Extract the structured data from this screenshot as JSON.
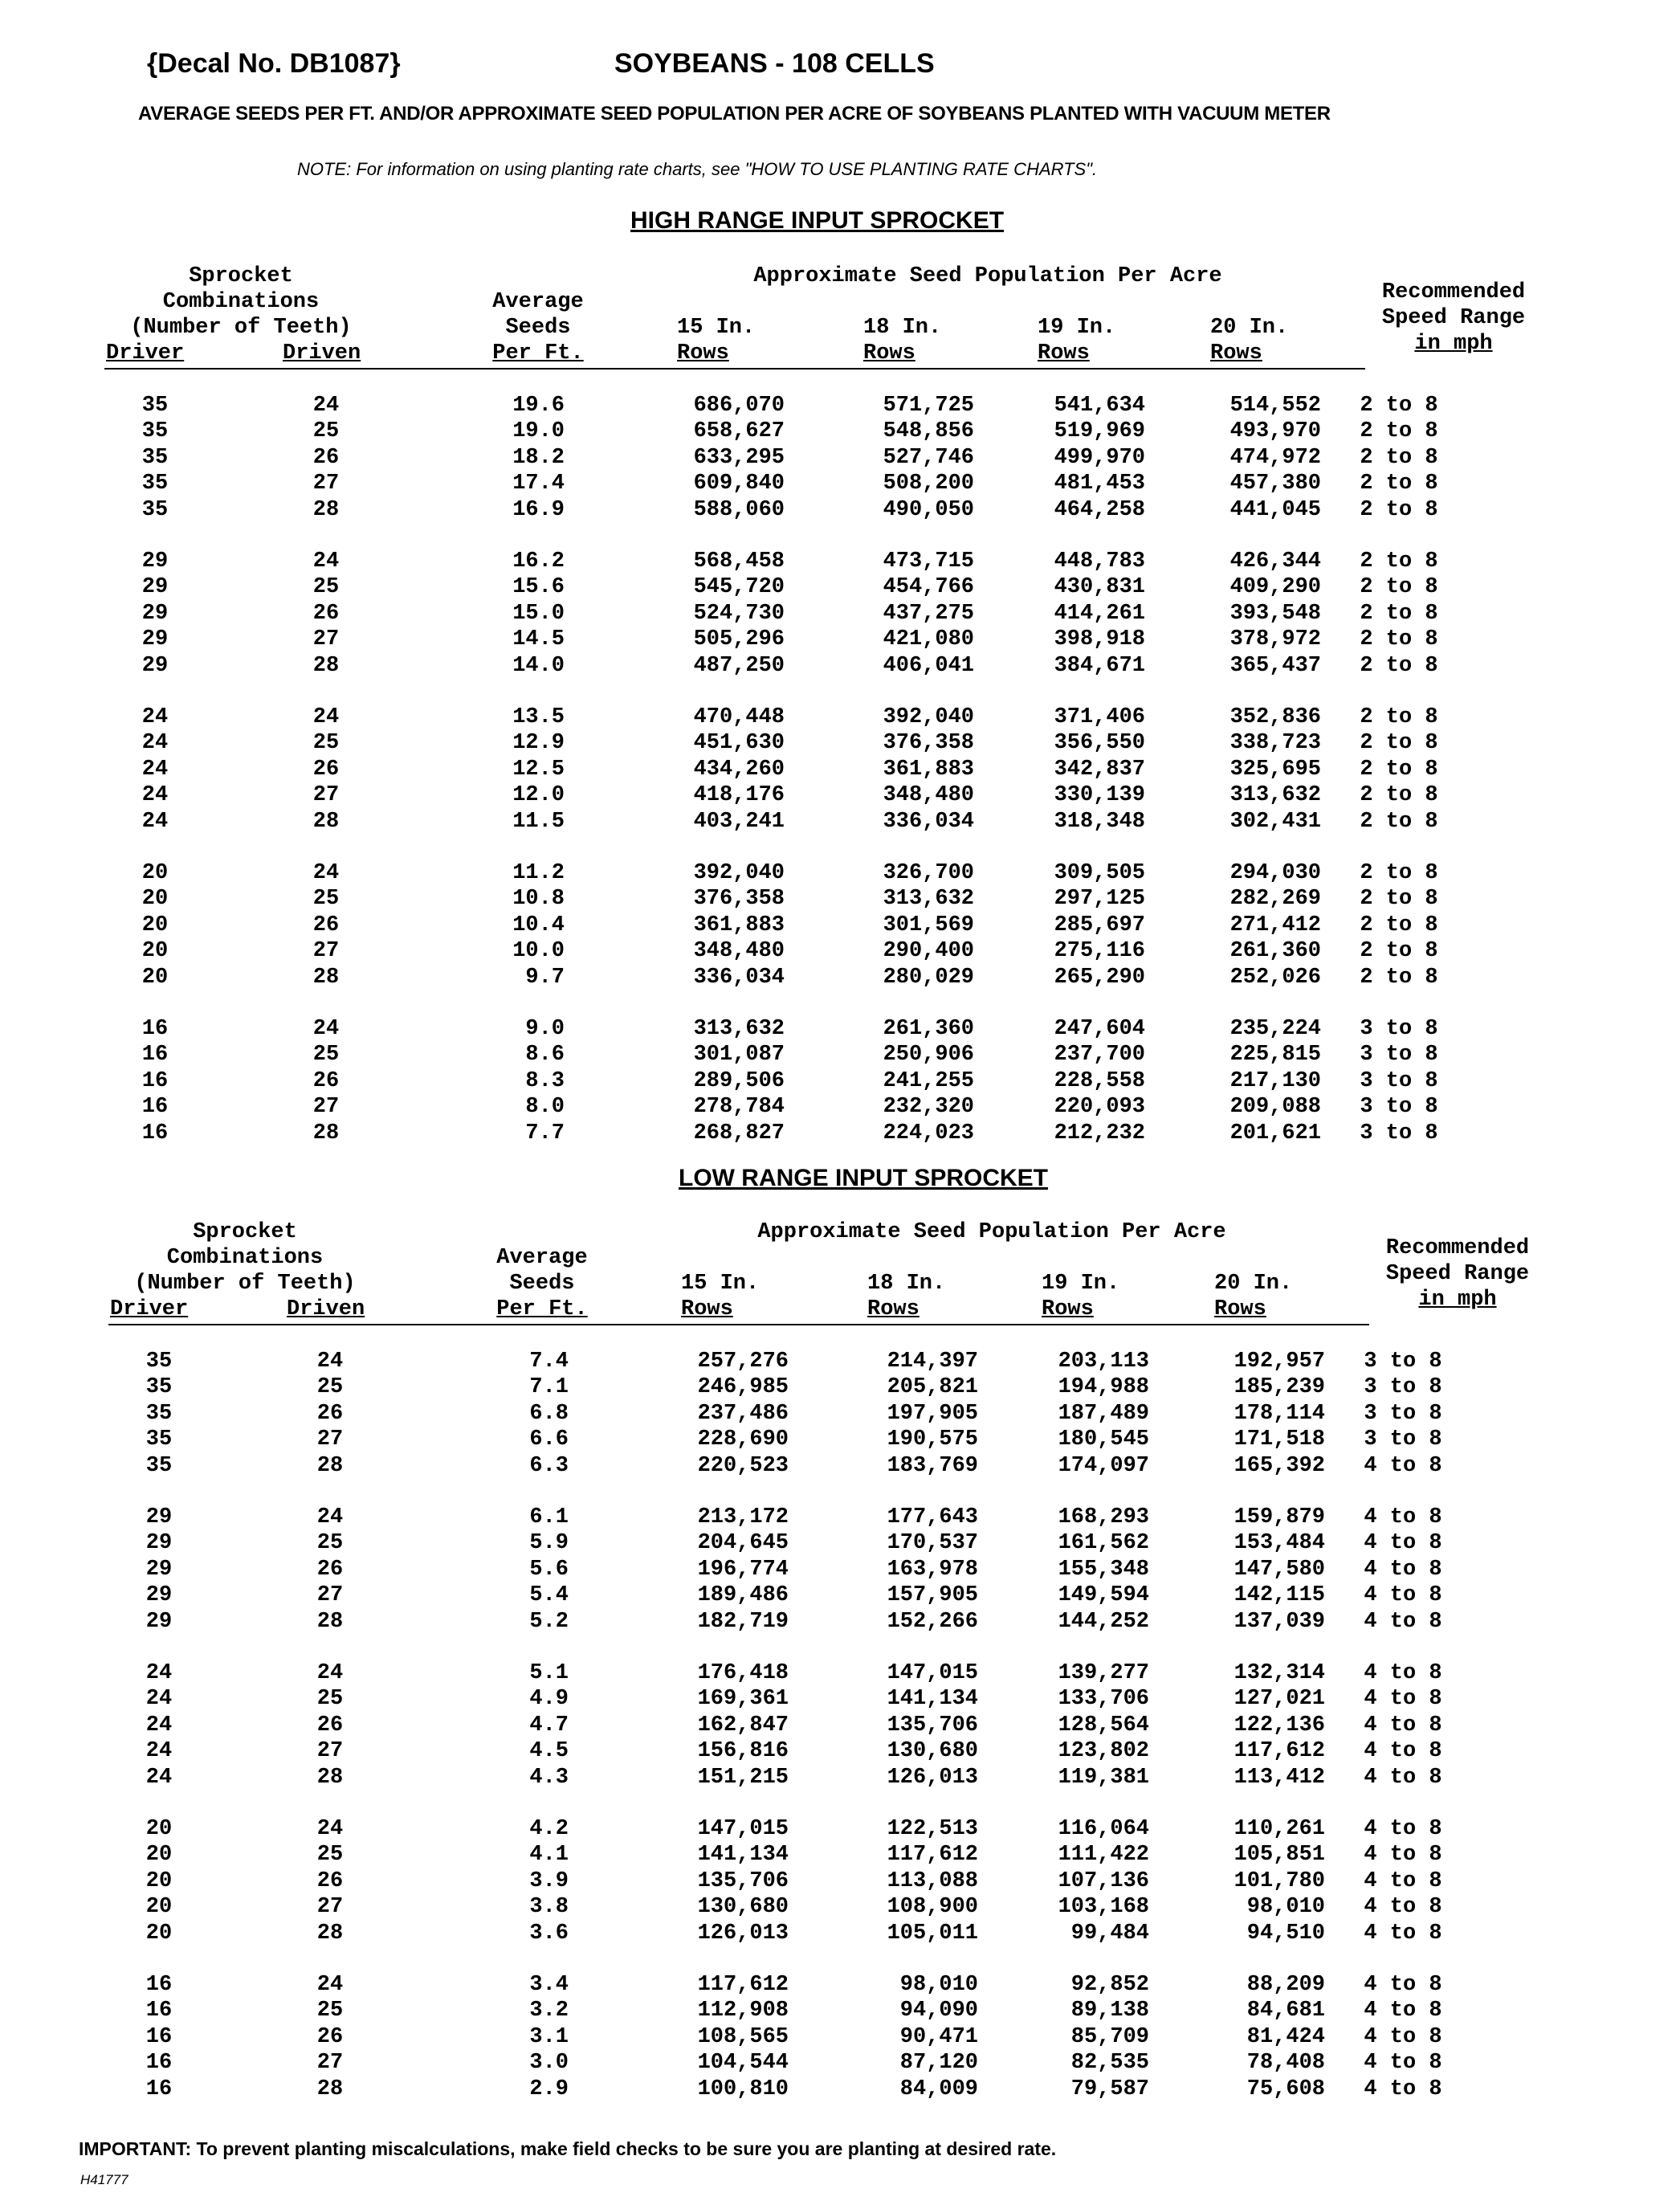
{
  "header": {
    "decal": "{Decal No. DB1087}",
    "title": "SOYBEANS - 108 CELLS",
    "subtitle": "AVERAGE SEEDS PER FT. AND/OR APPROXIMATE SEED POPULATION PER ACRE OF SOYBEANS PLANTED WITH VACUUM METER",
    "note": "NOTE: For information on using planting rate charts, see \"HOW TO USE PLANTING RATE CHARTS\"."
  },
  "columns": {
    "sprocket": [
      "Sprocket",
      "Combinations",
      "(Number of Teeth)"
    ],
    "driver": "Driver",
    "driven": "Driven",
    "avg": [
      "Average",
      "Seeds",
      "Per Ft."
    ],
    "population": "Approximate Seed Population Per Acre",
    "rows15": [
      "15 In.",
      "Rows"
    ],
    "rows18": [
      "18 In.",
      "Rows"
    ],
    "rows19": [
      "19 In.",
      "Rows"
    ],
    "rows20": [
      "20 In.",
      "Rows"
    ],
    "speed": [
      "Recommended",
      "Speed Range",
      "in mph"
    ]
  },
  "high_range": {
    "title": "HIGH RANGE INPUT SPROCKET",
    "rows": [
      [
        "35",
        "24",
        "19.6",
        "686,070",
        "571,725",
        "541,634",
        "514,552",
        "2 to 8"
      ],
      [
        "35",
        "25",
        "19.0",
        "658,627",
        "548,856",
        "519,969",
        "493,970",
        "2 to 8"
      ],
      [
        "35",
        "26",
        "18.2",
        "633,295",
        "527,746",
        "499,970",
        "474,972",
        "2 to 8"
      ],
      [
        "35",
        "27",
        "17.4",
        "609,840",
        "508,200",
        "481,453",
        "457,380",
        "2 to 8"
      ],
      [
        "35",
        "28",
        "16.9",
        "588,060",
        "490,050",
        "464,258",
        "441,045",
        "2 to 8"
      ],
      [
        "29",
        "24",
        "16.2",
        "568,458",
        "473,715",
        "448,783",
        "426,344",
        "2 to 8"
      ],
      [
        "29",
        "25",
        "15.6",
        "545,720",
        "454,766",
        "430,831",
        "409,290",
        "2 to 8"
      ],
      [
        "29",
        "26",
        "15.0",
        "524,730",
        "437,275",
        "414,261",
        "393,548",
        "2 to 8"
      ],
      [
        "29",
        "27",
        "14.5",
        "505,296",
        "421,080",
        "398,918",
        "378,972",
        "2 to 8"
      ],
      [
        "29",
        "28",
        "14.0",
        "487,250",
        "406,041",
        "384,671",
        "365,437",
        "2 to 8"
      ],
      [
        "24",
        "24",
        "13.5",
        "470,448",
        "392,040",
        "371,406",
        "352,836",
        "2 to 8"
      ],
      [
        "24",
        "25",
        "12.9",
        "451,630",
        "376,358",
        "356,550",
        "338,723",
        "2 to 8"
      ],
      [
        "24",
        "26",
        "12.5",
        "434,260",
        "361,883",
        "342,837",
        "325,695",
        "2 to 8"
      ],
      [
        "24",
        "27",
        "12.0",
        "418,176",
        "348,480",
        "330,139",
        "313,632",
        "2 to 8"
      ],
      [
        "24",
        "28",
        "11.5",
        "403,241",
        "336,034",
        "318,348",
        "302,431",
        "2 to 8"
      ],
      [
        "20",
        "24",
        "11.2",
        "392,040",
        "326,700",
        "309,505",
        "294,030",
        "2 to 8"
      ],
      [
        "20",
        "25",
        "10.8",
        "376,358",
        "313,632",
        "297,125",
        "282,269",
        "2 to 8"
      ],
      [
        "20",
        "26",
        "10.4",
        "361,883",
        "301,569",
        "285,697",
        "271,412",
        "2 to 8"
      ],
      [
        "20",
        "27",
        "10.0",
        "348,480",
        "290,400",
        "275,116",
        "261,360",
        "2 to 8"
      ],
      [
        "20",
        "28",
        "9.7",
        "336,034",
        "280,029",
        "265,290",
        "252,026",
        "2 to 8"
      ],
      [
        "16",
        "24",
        "9.0",
        "313,632",
        "261,360",
        "247,604",
        "235,224",
        "3 to 8"
      ],
      [
        "16",
        "25",
        "8.6",
        "301,087",
        "250,906",
        "237,700",
        "225,815",
        "3 to 8"
      ],
      [
        "16",
        "26",
        "8.3",
        "289,506",
        "241,255",
        "228,558",
        "217,130",
        "3 to 8"
      ],
      [
        "16",
        "27",
        "8.0",
        "278,784",
        "232,320",
        "220,093",
        "209,088",
        "3 to 8"
      ],
      [
        "16",
        "28",
        "7.7",
        "268,827",
        "224,023",
        "212,232",
        "201,621",
        "3 to 8"
      ]
    ]
  },
  "low_range": {
    "title": "LOW RANGE INPUT SPROCKET",
    "rows": [
      [
        "35",
        "24",
        "7.4",
        "257,276",
        "214,397",
        "203,113",
        "192,957",
        "3 to 8"
      ],
      [
        "35",
        "25",
        "7.1",
        "246,985",
        "205,821",
        "194,988",
        "185,239",
        "3 to 8"
      ],
      [
        "35",
        "26",
        "6.8",
        "237,486",
        "197,905",
        "187,489",
        "178,114",
        "3 to 8"
      ],
      [
        "35",
        "27",
        "6.6",
        "228,690",
        "190,575",
        "180,545",
        "171,518",
        "3 to 8"
      ],
      [
        "35",
        "28",
        "6.3",
        "220,523",
        "183,769",
        "174,097",
        "165,392",
        "4 to 8"
      ],
      [
        "29",
        "24",
        "6.1",
        "213,172",
        "177,643",
        "168,293",
        "159,879",
        "4 to 8"
      ],
      [
        "29",
        "25",
        "5.9",
        "204,645",
        "170,537",
        "161,562",
        "153,484",
        "4 to 8"
      ],
      [
        "29",
        "26",
        "5.6",
        "196,774",
        "163,978",
        "155,348",
        "147,580",
        "4 to 8"
      ],
      [
        "29",
        "27",
        "5.4",
        "189,486",
        "157,905",
        "149,594",
        "142,115",
        "4 to 8"
      ],
      [
        "29",
        "28",
        "5.2",
        "182,719",
        "152,266",
        "144,252",
        "137,039",
        "4 to 8"
      ],
      [
        "24",
        "24",
        "5.1",
        "176,418",
        "147,015",
        "139,277",
        "132,314",
        "4 to 8"
      ],
      [
        "24",
        "25",
        "4.9",
        "169,361",
        "141,134",
        "133,706",
        "127,021",
        "4 to 8"
      ],
      [
        "24",
        "26",
        "4.7",
        "162,847",
        "135,706",
        "128,564",
        "122,136",
        "4 to 8"
      ],
      [
        "24",
        "27",
        "4.5",
        "156,816",
        "130,680",
        "123,802",
        "117,612",
        "4 to 8"
      ],
      [
        "24",
        "28",
        "4.3",
        "151,215",
        "126,013",
        "119,381",
        "113,412",
        "4 to 8"
      ],
      [
        "20",
        "24",
        "4.2",
        "147,015",
        "122,513",
        "116,064",
        "110,261",
        "4 to 8"
      ],
      [
        "20",
        "25",
        "4.1",
        "141,134",
        "117,612",
        "111,422",
        "105,851",
        "4 to 8"
      ],
      [
        "20",
        "26",
        "3.9",
        "135,706",
        "113,088",
        "107,136",
        "101,780",
        "4 to 8"
      ],
      [
        "20",
        "27",
        "3.8",
        "130,680",
        "108,900",
        "103,168",
        "98,010",
        "4 to 8"
      ],
      [
        "20",
        "28",
        "3.6",
        "126,013",
        "105,011",
        "99,484",
        "94,510",
        "4 to 8"
      ],
      [
        "16",
        "24",
        "3.4",
        "117,612",
        "98,010",
        "92,852",
        "88,209",
        "4 to 8"
      ],
      [
        "16",
        "25",
        "3.2",
        "112,908",
        "94,090",
        "89,138",
        "84,681",
        "4 to 8"
      ],
      [
        "16",
        "26",
        "3.1",
        "108,565",
        "90,471",
        "85,709",
        "81,424",
        "4 to 8"
      ],
      [
        "16",
        "27",
        "3.0",
        "104,544",
        "87,120",
        "82,535",
        "78,408",
        "4 to 8"
      ],
      [
        "16",
        "28",
        "2.9",
        "100,810",
        "84,009",
        "79,587",
        "75,608",
        "4 to 8"
      ]
    ]
  },
  "footer": {
    "important": "IMPORTANT: To prevent planting miscalculations, make field checks to be sure you are planting at desired rate.",
    "code": "H41777"
  }
}
